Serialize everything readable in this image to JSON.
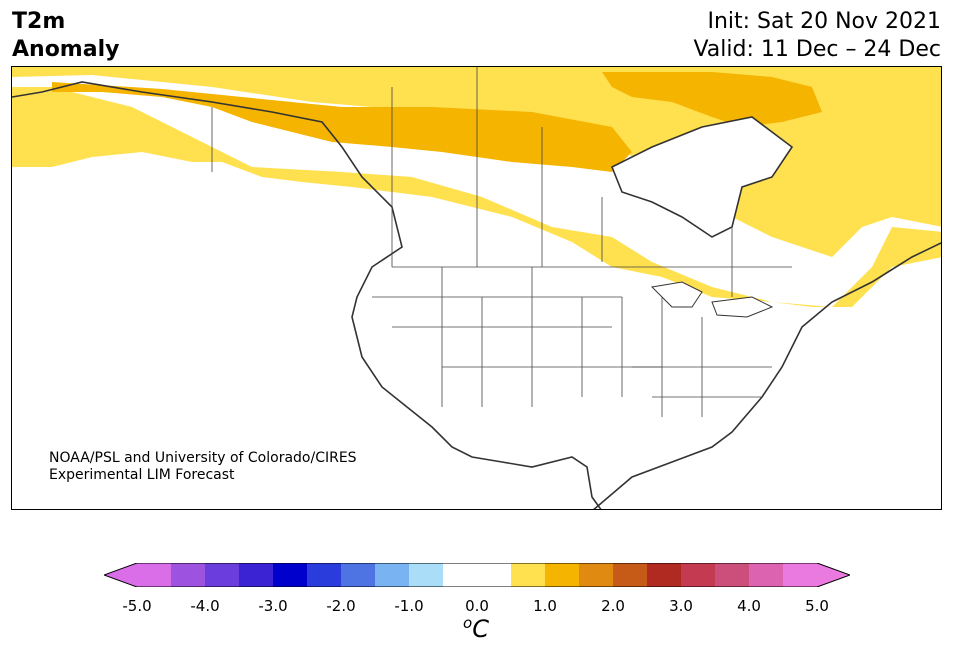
{
  "title": {
    "line1": "T2m",
    "line2": "Anomaly",
    "init": "Init: Sat 20 Nov 2021",
    "valid": "Valid: 11 Dec – 24 Dec"
  },
  "credit": {
    "line1": "NOAA/PSL and University of Colorado/CIRES",
    "line2": "Experimental LIM Forecast"
  },
  "colorbar": {
    "unit_superscript": "o",
    "unit": "C",
    "ticks": [
      "-5.0",
      "-4.0",
      "-3.0",
      "-2.0",
      "-1.0",
      "0.0",
      "1.0",
      "2.0",
      "3.0",
      "4.0",
      "5.0"
    ],
    "colors": [
      "#d96ee8",
      "#9d52e0",
      "#6a3ddc",
      "#3b22d2",
      "#0000cc",
      "#2a3ddc",
      "#4e74e3",
      "#79b3f2",
      "#a9ddf8",
      "#ffffff",
      "#ffffff",
      "#ffe04f",
      "#f4b400",
      "#e08a12",
      "#c65a17",
      "#b02a22",
      "#c43a50",
      "#cc4f7b",
      "#dc63b0",
      "#ea7ae0"
    ],
    "extend_low_color": "#d96ee8",
    "extend_high_color": "#ea7ae0"
  },
  "map": {
    "region": "North America",
    "anomaly_light_color": "#ffe04f",
    "anomaly_strong_color": "#f4b400",
    "land_outline_color": "#333333"
  }
}
